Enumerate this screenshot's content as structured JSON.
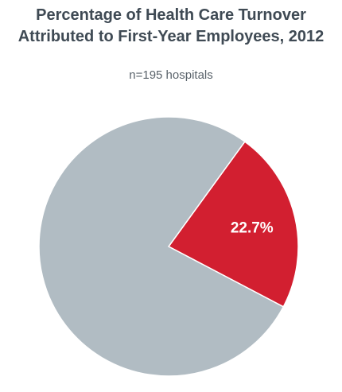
{
  "chart_data": {
    "type": "pie",
    "title_lines": [
      "Percentage of Health Care Turnover",
      "Attributed to First-Year Employees, 2012"
    ],
    "subtitle": "n=195 hospitals",
    "slices": [
      {
        "value": 22.7,
        "label": "22.7%",
        "color": "#d21f30"
      },
      {
        "value": 77.3,
        "label": "",
        "color": "#b1bcc3"
      }
    ],
    "start_angle_deg": -54,
    "slice_border_color": "#ffffff"
  }
}
